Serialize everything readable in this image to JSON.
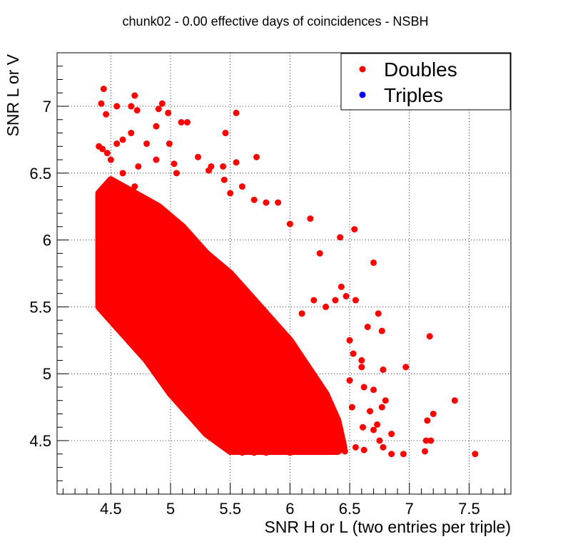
{
  "chart_data": {
    "type": "scatter",
    "title": "chunk02 - 0.00 effective days of coincidences - NSBH",
    "xlabel": "SNR H or L (two entries per triple)",
    "ylabel": "SNR L or V",
    "xlim": [
      4.05,
      7.85
    ],
    "ylim": [
      4.1,
      7.4
    ],
    "xticks": [
      4.5,
      5,
      5.5,
      6,
      6.5,
      7,
      7.5
    ],
    "xtick_labels": [
      "4.5",
      "5",
      "5.5",
      "6",
      "6.5",
      "7",
      "7.5"
    ],
    "yticks": [
      4.5,
      5,
      5.5,
      6,
      6.5,
      7
    ],
    "ytick_labels": [
      "4.5",
      "5",
      "5.5",
      "6",
      "6.5",
      "7"
    ],
    "grid": true,
    "legend_position": "top-right",
    "series": [
      {
        "name": "Doubles",
        "color": "#ff0000",
        "points": [
          [
            4.44,
            7.13
          ],
          [
            4.42,
            7.02
          ],
          [
            4.55,
            7.0
          ],
          [
            4.7,
            7.08
          ],
          [
            4.67,
            7.0
          ],
          [
            4.72,
            6.97
          ],
          [
            4.46,
            6.94
          ],
          [
            4.93,
            7.02
          ],
          [
            4.9,
            6.98
          ],
          [
            4.98,
            6.95
          ],
          [
            5.09,
            6.88
          ],
          [
            5.14,
            6.88
          ],
          [
            5.46,
            6.8
          ],
          [
            5.55,
            6.95
          ],
          [
            4.88,
            6.85
          ],
          [
            4.67,
            6.8
          ],
          [
            4.4,
            6.7
          ],
          [
            4.43,
            6.68
          ],
          [
            4.47,
            6.65
          ],
          [
            4.55,
            6.72
          ],
          [
            4.6,
            6.75
          ],
          [
            4.8,
            6.72
          ],
          [
            4.99,
            6.72
          ],
          [
            4.88,
            6.6
          ],
          [
            4.73,
            6.55
          ],
          [
            5.03,
            6.57
          ],
          [
            5.05,
            6.5
          ],
          [
            5.23,
            6.62
          ],
          [
            5.32,
            6.52
          ],
          [
            5.34,
            6.55
          ],
          [
            5.44,
            6.55
          ],
          [
            5.55,
            6.58
          ],
          [
            5.72,
            6.62
          ],
          [
            5.45,
            6.45
          ],
          [
            5.6,
            6.4
          ],
          [
            5.5,
            6.35
          ],
          [
            5.7,
            6.3
          ],
          [
            5.8,
            6.28
          ],
          [
            5.9,
            6.28
          ],
          [
            6.0,
            6.12
          ],
          [
            6.17,
            6.16
          ],
          [
            6.42,
            6.02
          ],
          [
            6.54,
            6.08
          ],
          [
            6.25,
            5.9
          ],
          [
            6.7,
            5.83
          ],
          [
            6.43,
            5.65
          ],
          [
            6.38,
            5.55
          ],
          [
            6.47,
            5.58
          ],
          [
            6.2,
            5.55
          ],
          [
            6.3,
            5.5
          ],
          [
            6.1,
            5.45
          ],
          [
            6.55,
            5.55
          ],
          [
            6.74,
            5.45
          ],
          [
            6.65,
            5.35
          ],
          [
            6.77,
            5.32
          ],
          [
            6.5,
            5.25
          ],
          [
            6.53,
            5.15
          ],
          [
            6.6,
            5.1
          ],
          [
            7.17,
            5.28
          ],
          [
            6.6,
            5.05
          ],
          [
            6.78,
            5.03
          ],
          [
            6.97,
            5.05
          ],
          [
            6.5,
            4.95
          ],
          [
            6.62,
            4.9
          ],
          [
            6.7,
            4.88
          ],
          [
            6.8,
            4.8
          ],
          [
            6.77,
            4.75
          ],
          [
            6.52,
            4.75
          ],
          [
            6.67,
            4.72
          ],
          [
            6.61,
            4.6
          ],
          [
            6.7,
            4.58
          ],
          [
            6.73,
            4.62
          ],
          [
            6.85,
            4.55
          ],
          [
            6.75,
            4.5
          ],
          [
            6.78,
            4.45
          ],
          [
            6.55,
            4.45
          ],
          [
            6.62,
            4.43
          ],
          [
            7.15,
            4.65
          ],
          [
            7.2,
            4.7
          ],
          [
            7.38,
            4.8
          ],
          [
            7.14,
            4.5
          ],
          [
            7.18,
            4.5
          ],
          [
            7.13,
            4.42
          ],
          [
            6.95,
            4.4
          ],
          [
            7.55,
            4.4
          ],
          [
            6.46,
            4.42
          ],
          [
            6.85,
            4.4
          ],
          [
            6.4,
            4.55
          ],
          [
            6.3,
            4.6
          ],
          [
            6.2,
            4.7
          ],
          [
            6.15,
            4.85
          ],
          [
            6.05,
            5.0
          ],
          [
            5.9,
            5.1
          ],
          [
            5.8,
            5.2
          ],
          [
            5.7,
            5.35
          ],
          [
            5.6,
            5.45
          ],
          [
            5.5,
            5.55
          ],
          [
            5.4,
            5.7
          ],
          [
            5.3,
            5.8
          ],
          [
            5.2,
            5.9
          ],
          [
            5.1,
            6.0
          ],
          [
            5.0,
            6.1
          ],
          [
            4.9,
            6.2
          ],
          [
            4.8,
            6.3
          ],
          [
            4.7,
            6.4
          ],
          [
            4.6,
            6.5
          ],
          [
            4.5,
            6.6
          ],
          [
            4.42,
            6.2
          ],
          [
            4.45,
            6.0
          ],
          [
            4.4,
            5.9
          ],
          [
            4.42,
            5.7
          ],
          [
            4.45,
            5.55
          ],
          [
            4.5,
            5.45
          ],
          [
            4.55,
            5.35
          ],
          [
            4.6,
            5.3
          ],
          [
            4.7,
            5.2
          ],
          [
            4.8,
            5.1
          ],
          [
            4.9,
            5.0
          ],
          [
            5.0,
            4.9
          ],
          [
            5.1,
            4.8
          ],
          [
            5.2,
            4.7
          ],
          [
            5.3,
            4.6
          ],
          [
            5.4,
            4.5
          ],
          [
            5.5,
            4.42
          ],
          [
            5.6,
            4.41
          ],
          [
            5.7,
            4.41
          ],
          [
            5.8,
            4.41
          ],
          [
            5.9,
            4.42
          ],
          [
            6.0,
            4.41
          ],
          [
            6.1,
            4.42
          ],
          [
            6.2,
            4.42
          ],
          [
            6.3,
            4.42
          ],
          [
            6.35,
            4.45
          ],
          [
            4.5,
            6.1
          ],
          [
            4.6,
            6.0
          ],
          [
            4.7,
            5.9
          ],
          [
            4.8,
            5.8
          ],
          [
            4.9,
            5.7
          ],
          [
            5.0,
            5.6
          ],
          [
            5.1,
            5.5
          ],
          [
            5.2,
            5.4
          ],
          [
            5.3,
            5.3
          ],
          [
            5.4,
            5.2
          ],
          [
            5.5,
            5.1
          ],
          [
            5.6,
            5.0
          ],
          [
            5.7,
            4.9
          ],
          [
            5.8,
            4.8
          ],
          [
            5.9,
            4.7
          ],
          [
            6.0,
            4.6
          ],
          [
            6.1,
            4.5
          ],
          [
            4.5,
            5.8
          ],
          [
            4.6,
            5.7
          ],
          [
            4.7,
            5.6
          ],
          [
            4.8,
            5.5
          ],
          [
            4.9,
            5.4
          ],
          [
            5.0,
            5.3
          ],
          [
            5.1,
            5.2
          ],
          [
            5.2,
            5.1
          ],
          [
            5.3,
            5.0
          ],
          [
            5.4,
            4.9
          ],
          [
            5.5,
            4.8
          ],
          [
            5.6,
            4.7
          ],
          [
            5.7,
            4.6
          ],
          [
            5.8,
            4.5
          ],
          [
            5.9,
            4.45
          ],
          [
            4.55,
            5.5
          ],
          [
            4.65,
            5.45
          ],
          [
            4.75,
            5.35
          ],
          [
            4.85,
            5.25
          ],
          [
            4.95,
            5.15
          ],
          [
            5.05,
            5.05
          ],
          [
            5.15,
            4.95
          ],
          [
            5.25,
            4.85
          ],
          [
            5.35,
            4.75
          ],
          [
            5.45,
            4.65
          ],
          [
            5.55,
            4.55
          ],
          [
            5.65,
            4.5
          ]
        ]
      },
      {
        "name": "Triples",
        "color": "#0000ff",
        "points": []
      }
    ],
    "dense_region": {
      "series": "Doubles",
      "polygon": [
        [
          4.4,
          6.35
        ],
        [
          4.5,
          6.45
        ],
        [
          4.7,
          6.35
        ],
        [
          4.9,
          6.25
        ],
        [
          5.1,
          6.1
        ],
        [
          5.3,
          5.9
        ],
        [
          5.5,
          5.75
        ],
        [
          5.7,
          5.55
        ],
        [
          5.85,
          5.4
        ],
        [
          6.0,
          5.25
        ],
        [
          6.15,
          5.05
        ],
        [
          6.3,
          4.85
        ],
        [
          6.4,
          4.65
        ],
        [
          6.45,
          4.45
        ],
        [
          6.4,
          4.42
        ],
        [
          5.5,
          4.42
        ],
        [
          5.3,
          4.55
        ],
        [
          5.0,
          4.85
        ],
        [
          4.8,
          5.1
        ],
        [
          4.6,
          5.3
        ],
        [
          4.4,
          5.5
        ]
      ]
    }
  }
}
